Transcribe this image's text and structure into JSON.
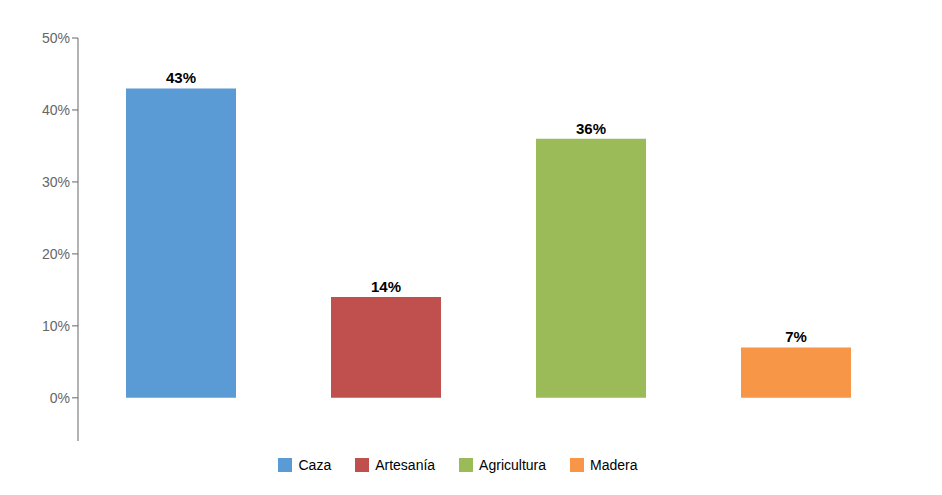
{
  "chart_data": {
    "type": "bar",
    "categories": [
      "Caza",
      "Artesanía",
      "Agricultura",
      "Madera"
    ],
    "values": [
      43,
      14,
      36,
      7
    ],
    "value_labels": [
      "43%",
      "14%",
      "36%",
      "7%"
    ],
    "data_labels": true,
    "colors": [
      "#5B9BD5",
      "#C0504D",
      "#9BBB59",
      "#F79646"
    ],
    "ylim": [
      -6,
      50
    ],
    "yticks": [
      {
        "value": 0,
        "label": "0%"
      },
      {
        "value": 10,
        "label": "10%"
      },
      {
        "value": 20,
        "label": "20%"
      },
      {
        "value": 30,
        "label": "30%"
      },
      {
        "value": 40,
        "label": "40%"
      },
      {
        "value": 50,
        "label": "50%"
      }
    ],
    "tick_labels": "y",
    "grid": false,
    "legend": "bottom"
  }
}
